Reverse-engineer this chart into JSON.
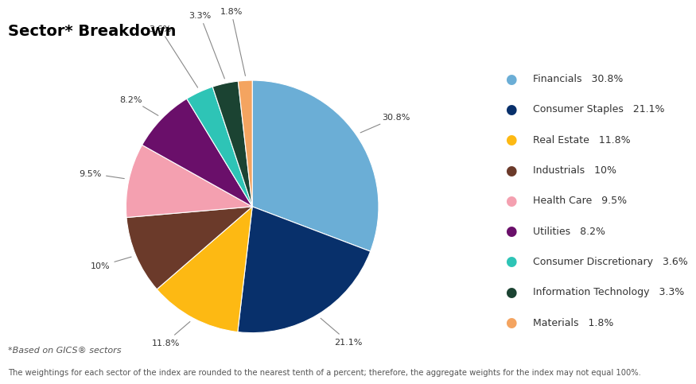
{
  "title": "Sector* Breakdown",
  "footnote1": "*Based on GICS® sectors",
  "footnote2": "The weightings for each sector of the index are rounded to the nearest tenth of a percent; therefore, the aggregate weights for the index may not equal 100%.",
  "sectors": [
    "Financials",
    "Consumer Staples",
    "Real Estate",
    "Industrials",
    "Health Care",
    "Utilities",
    "Consumer Discretionary",
    "Information Technology",
    "Materials"
  ],
  "values": [
    30.8,
    21.1,
    11.8,
    10.0,
    9.5,
    8.2,
    3.6,
    3.3,
    1.8
  ],
  "colors": [
    "#6BAED6",
    "#08306B",
    "#FDB913",
    "#6B3A2A",
    "#F4A0B0",
    "#6A0F6A",
    "#2EC4B6",
    "#1B4332",
    "#F4A460"
  ],
  "label_texts": [
    "30.8%",
    "21.1%",
    "11.8%",
    "10%",
    "9.5%",
    "8.2%",
    "3.6%",
    "3.3%",
    "1.8%"
  ],
  "pct_display": [
    "30.8%",
    "21.1%",
    "11.8%",
    "10%",
    "9.5%",
    "8.2%",
    "3.6%",
    "3.3%",
    "1.8%"
  ],
  "background_color": "#FFFFFF",
  "startangle": 90
}
